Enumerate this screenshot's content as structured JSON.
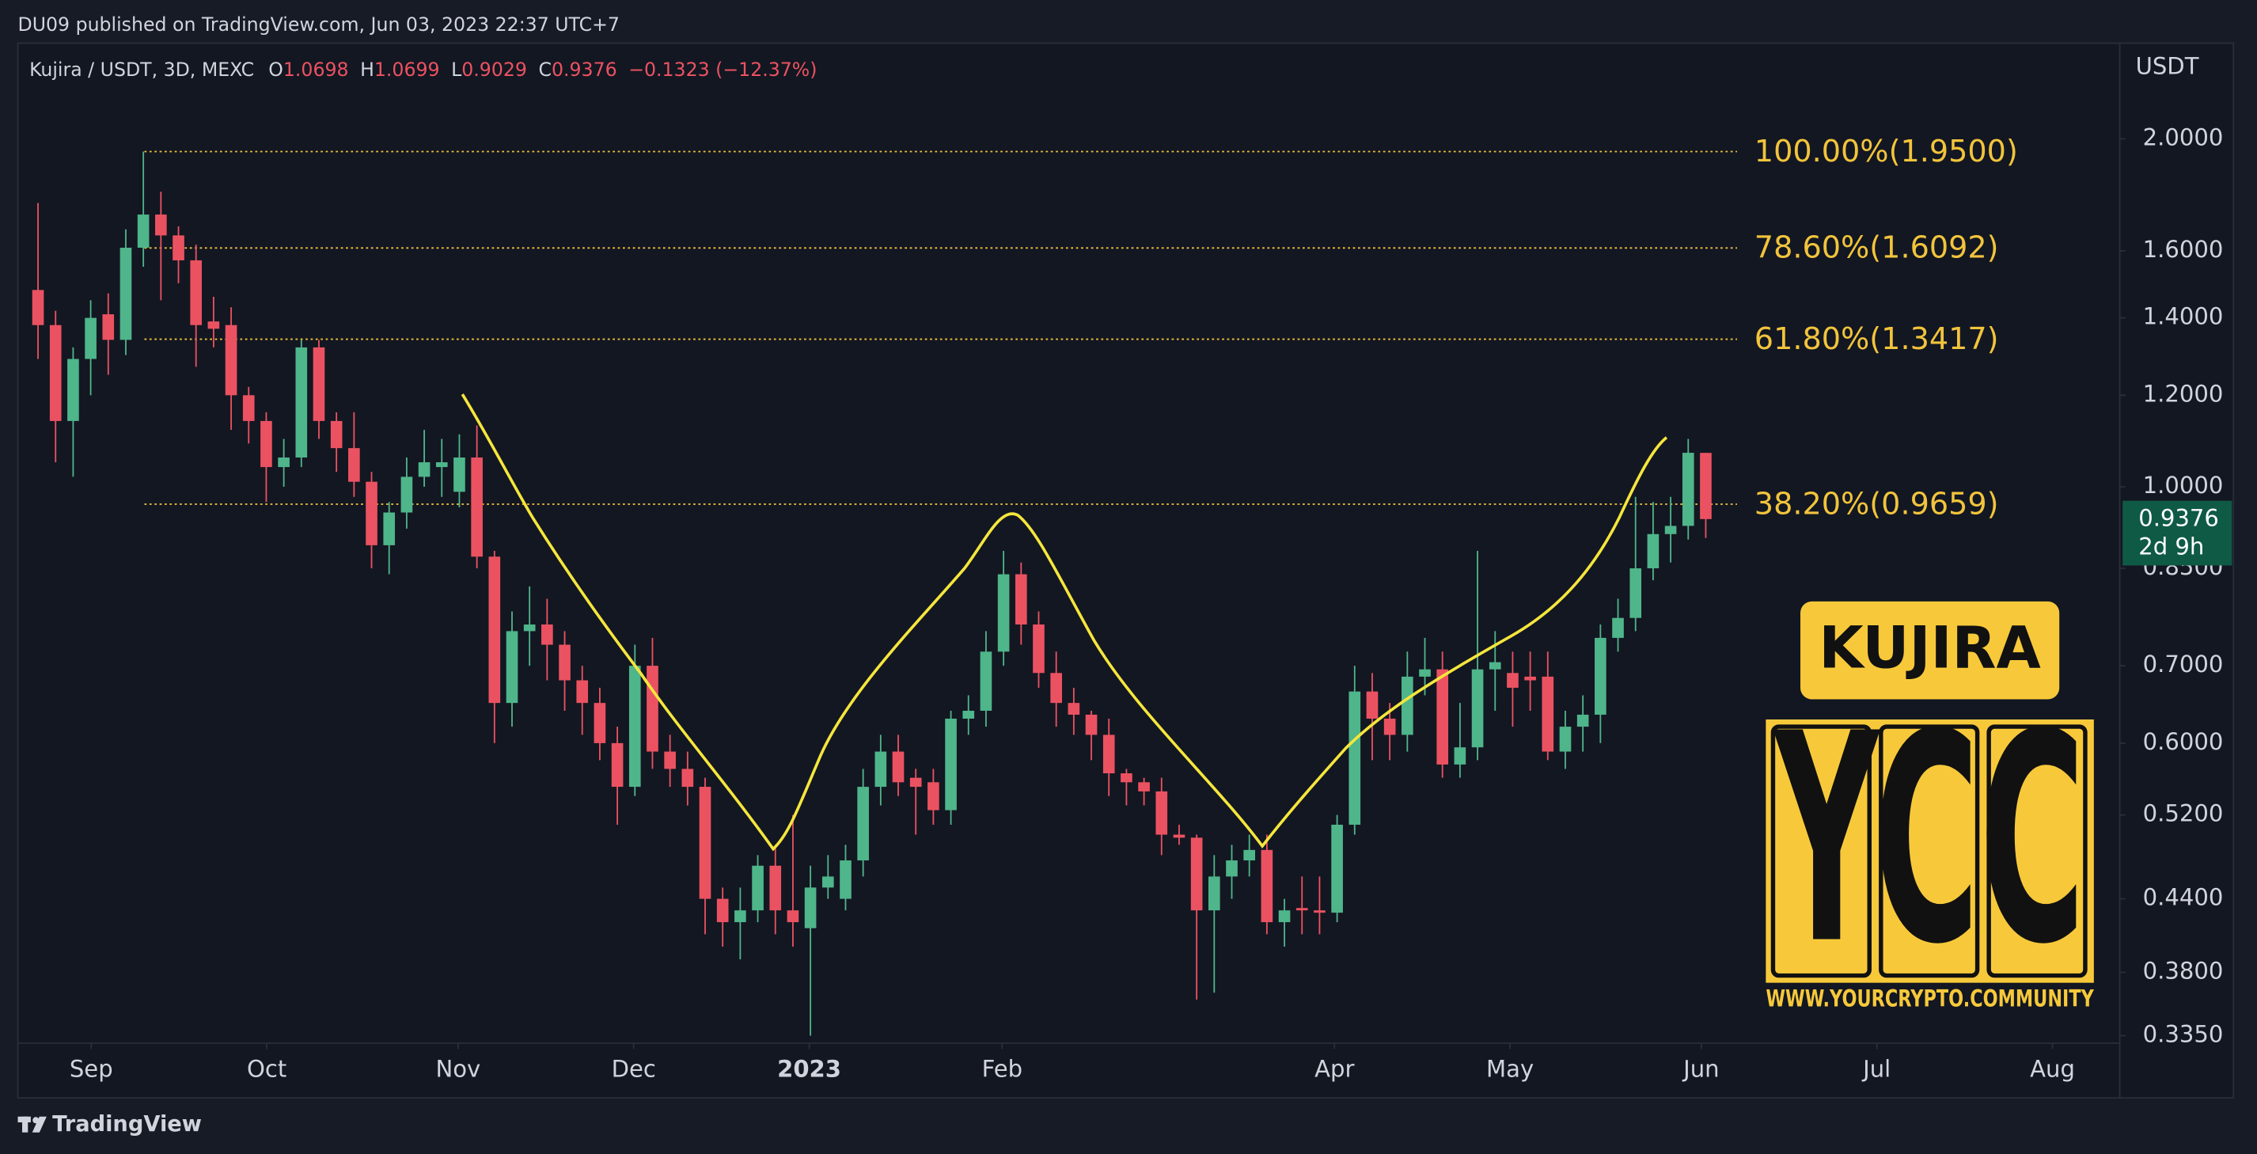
{
  "header": "DU09 published on TradingView.com, Jun 03, 2023 22:37 UTC+7",
  "footer": "TradingView",
  "chart_data": {
    "type": "candlestick",
    "symbol": "Kujira / USDT, 3D, MEXC",
    "legend_labels": [
      "O",
      "H",
      "L",
      "C"
    ],
    "change": "−0.1323 (−12.37%)",
    "axis_unit": "USDT",
    "countdown": "2d 9h",
    "log_scale": true,
    "up_color": "#4fb58a",
    "down_color": "#eb5261",
    "fib_color": "#f2c43c",
    "ylim": [
      0.33,
      2.42
    ],
    "yticks": [
      {
        "value": 2,
        "label": "2.0000"
      },
      {
        "value": 1.6,
        "label": "1.6000"
      },
      {
        "value": 1.4,
        "label": "1.4000"
      },
      {
        "value": 1.2,
        "label": "1.2000"
      },
      {
        "value": 1,
        "label": "1.0000"
      },
      {
        "value": 0.85,
        "label": "0.8500"
      },
      {
        "value": 0.7,
        "label": "0.7000"
      },
      {
        "value": 0.6,
        "label": "0.6000"
      },
      {
        "value": 0.52,
        "label": "0.5200"
      },
      {
        "value": 0.44,
        "label": "0.4400"
      },
      {
        "value": 0.38,
        "label": "0.3800"
      },
      {
        "value": 0.335,
        "label": "0.3350"
      }
    ],
    "xlim": [
      -1.15,
      118.5
    ],
    "xticks": [
      {
        "value": 3.03,
        "label": "Sep"
      },
      {
        "value": 13.03,
        "label": "Oct"
      },
      {
        "value": 23.93,
        "label": "Nov"
      },
      {
        "value": 33.93,
        "label": "Dec"
      },
      {
        "value": 43.93,
        "label": "2023"
      },
      {
        "value": 54.92,
        "label": "Feb"
      },
      {
        "value": 73.85,
        "label": "Apr"
      },
      {
        "value": 83.85,
        "label": "May"
      },
      {
        "value": 94.75,
        "label": "Jun"
      },
      {
        "value": 104.75,
        "label": "Jul"
      },
      {
        "value": 114.75,
        "label": "Aug"
      }
    ],
    "fib_levels": [
      {
        "value": 1.95,
        "label": "100.00%(1.9500)"
      },
      {
        "value": 1.6092,
        "label": "78.60%(1.6092)"
      },
      {
        "value": 1.3417,
        "label": "61.80%(1.3417)"
      },
      {
        "value": 0.9659,
        "label": "38.20%(0.9659)"
      }
    ],
    "watermark": {
      "badge": "KUJIRA",
      "logo": "YCC",
      "site": "WWW.YOURCRYPTO.COMMUNITY"
    },
    "candles": [
      {
        "open": 1.48,
        "high": 1.76,
        "low": 1.29,
        "close": 1.38
      },
      {
        "open": 1.38,
        "high": 1.42,
        "low": 1.05,
        "close": 1.14
      },
      {
        "open": 1.14,
        "high": 1.32,
        "low": 1.02,
        "close": 1.29
      },
      {
        "open": 1.29,
        "high": 1.45,
        "low": 1.2,
        "close": 1.4
      },
      {
        "open": 1.41,
        "high": 1.47,
        "low": 1.25,
        "close": 1.34
      },
      {
        "open": 1.34,
        "high": 1.67,
        "low": 1.3,
        "close": 1.61
      },
      {
        "open": 1.61,
        "high": 1.95,
        "low": 1.55,
        "close": 1.72
      },
      {
        "open": 1.72,
        "high": 1.8,
        "low": 1.45,
        "close": 1.65
      },
      {
        "open": 1.65,
        "high": 1.68,
        "low": 1.5,
        "close": 1.57
      },
      {
        "open": 1.57,
        "high": 1.62,
        "low": 1.27,
        "close": 1.38
      },
      {
        "open": 1.39,
        "high": 1.46,
        "low": 1.32,
        "close": 1.37
      },
      {
        "open": 1.38,
        "high": 1.43,
        "low": 1.12,
        "close": 1.2
      },
      {
        "open": 1.2,
        "high": 1.22,
        "low": 1.09,
        "close": 1.14
      },
      {
        "open": 1.14,
        "high": 1.16,
        "low": 0.97,
        "close": 1.04
      },
      {
        "open": 1.04,
        "high": 1.1,
        "low": 1.0,
        "close": 1.06
      },
      {
        "open": 1.06,
        "high": 1.34,
        "low": 1.04,
        "close": 1.32
      },
      {
        "open": 1.32,
        "high": 1.34,
        "low": 1.1,
        "close": 1.14
      },
      {
        "open": 1.14,
        "high": 1.16,
        "low": 1.03,
        "close": 1.08
      },
      {
        "open": 1.08,
        "high": 1.16,
        "low": 0.98,
        "close": 1.01
      },
      {
        "open": 1.01,
        "high": 1.03,
        "low": 0.85,
        "close": 0.89
      },
      {
        "open": 0.89,
        "high": 0.97,
        "low": 0.84,
        "close": 0.95
      },
      {
        "open": 0.95,
        "high": 1.06,
        "low": 0.92,
        "close": 1.02
      },
      {
        "open": 1.02,
        "high": 1.12,
        "low": 1.0,
        "close": 1.05
      },
      {
        "open": 1.04,
        "high": 1.1,
        "low": 0.98,
        "close": 1.05
      },
      {
        "open": 0.99,
        "high": 1.11,
        "low": 0.96,
        "close": 1.06
      },
      {
        "open": 1.06,
        "high": 1.13,
        "low": 0.85,
        "close": 0.87
      },
      {
        "open": 0.87,
        "high": 0.88,
        "low": 0.6,
        "close": 0.65
      },
      {
        "open": 0.65,
        "high": 0.78,
        "low": 0.62,
        "close": 0.75
      },
      {
        "open": 0.75,
        "high": 0.82,
        "low": 0.7,
        "close": 0.76
      },
      {
        "open": 0.76,
        "high": 0.8,
        "low": 0.68,
        "close": 0.73
      },
      {
        "open": 0.73,
        "high": 0.75,
        "low": 0.64,
        "close": 0.68
      },
      {
        "open": 0.68,
        "high": 0.7,
        "low": 0.61,
        "close": 0.65
      },
      {
        "open": 0.65,
        "high": 0.67,
        "low": 0.58,
        "close": 0.6
      },
      {
        "open": 0.6,
        "high": 0.62,
        "low": 0.51,
        "close": 0.55
      },
      {
        "open": 0.55,
        "high": 0.73,
        "low": 0.54,
        "close": 0.7
      },
      {
        "open": 0.7,
        "high": 0.74,
        "low": 0.57,
        "close": 0.59
      },
      {
        "open": 0.59,
        "high": 0.61,
        "low": 0.55,
        "close": 0.57
      },
      {
        "open": 0.57,
        "high": 0.59,
        "low": 0.53,
        "close": 0.55
      },
      {
        "open": 0.55,
        "high": 0.56,
        "low": 0.41,
        "close": 0.44
      },
      {
        "open": 0.44,
        "high": 0.45,
        "low": 0.4,
        "close": 0.42
      },
      {
        "open": 0.42,
        "high": 0.45,
        "low": 0.39,
        "close": 0.43
      },
      {
        "open": 0.43,
        "high": 0.48,
        "low": 0.42,
        "close": 0.47
      },
      {
        "open": 0.47,
        "high": 0.49,
        "low": 0.41,
        "close": 0.43
      },
      {
        "open": 0.43,
        "high": 0.52,
        "low": 0.4,
        "close": 0.42
      },
      {
        "open": 0.415,
        "high": 0.47,
        "low": 0.335,
        "close": 0.45
      },
      {
        "open": 0.45,
        "high": 0.48,
        "low": 0.44,
        "close": 0.46
      },
      {
        "open": 0.44,
        "high": 0.49,
        "low": 0.43,
        "close": 0.475
      },
      {
        "open": 0.475,
        "high": 0.57,
        "low": 0.46,
        "close": 0.55
      },
      {
        "open": 0.55,
        "high": 0.61,
        "low": 0.53,
        "close": 0.59
      },
      {
        "open": 0.59,
        "high": 0.61,
        "low": 0.54,
        "close": 0.555
      },
      {
        "open": 0.56,
        "high": 0.57,
        "low": 0.5,
        "close": 0.55
      },
      {
        "open": 0.555,
        "high": 0.57,
        "low": 0.51,
        "close": 0.525
      },
      {
        "open": 0.525,
        "high": 0.64,
        "low": 0.51,
        "close": 0.63
      },
      {
        "open": 0.63,
        "high": 0.66,
        "low": 0.61,
        "close": 0.64
      },
      {
        "open": 0.64,
        "high": 0.75,
        "low": 0.62,
        "close": 0.72
      },
      {
        "open": 0.72,
        "high": 0.88,
        "low": 0.7,
        "close": 0.84
      },
      {
        "open": 0.84,
        "high": 0.86,
        "low": 0.73,
        "close": 0.76
      },
      {
        "open": 0.76,
        "high": 0.78,
        "low": 0.67,
        "close": 0.69
      },
      {
        "open": 0.69,
        "high": 0.72,
        "low": 0.62,
        "close": 0.65
      },
      {
        "open": 0.65,
        "high": 0.67,
        "low": 0.61,
        "close": 0.635
      },
      {
        "open": 0.635,
        "high": 0.64,
        "low": 0.58,
        "close": 0.61
      },
      {
        "open": 0.61,
        "high": 0.63,
        "low": 0.54,
        "close": 0.565
      },
      {
        "open": 0.565,
        "high": 0.57,
        "low": 0.53,
        "close": 0.555
      },
      {
        "open": 0.555,
        "high": 0.56,
        "low": 0.53,
        "close": 0.545
      },
      {
        "open": 0.545,
        "high": 0.56,
        "low": 0.48,
        "close": 0.5
      },
      {
        "open": 0.5,
        "high": 0.51,
        "low": 0.49,
        "close": 0.497
      },
      {
        "open": 0.497,
        "high": 0.5,
        "low": 0.36,
        "close": 0.43
      },
      {
        "open": 0.43,
        "high": 0.48,
        "low": 0.365,
        "close": 0.46
      },
      {
        "open": 0.46,
        "high": 0.49,
        "low": 0.44,
        "close": 0.475
      },
      {
        "open": 0.475,
        "high": 0.5,
        "low": 0.46,
        "close": 0.485
      },
      {
        "open": 0.485,
        "high": 0.5,
        "low": 0.41,
        "close": 0.42
      },
      {
        "open": 0.42,
        "high": 0.44,
        "low": 0.4,
        "close": 0.43
      },
      {
        "open": 0.432,
        "high": 0.46,
        "low": 0.41,
        "close": 0.43
      },
      {
        "open": 0.43,
        "high": 0.46,
        "low": 0.41,
        "close": 0.428
      },
      {
        "open": 0.428,
        "high": 0.52,
        "low": 0.42,
        "close": 0.51
      },
      {
        "open": 0.51,
        "high": 0.7,
        "low": 0.5,
        "close": 0.665
      },
      {
        "open": 0.665,
        "high": 0.69,
        "low": 0.58,
        "close": 0.63
      },
      {
        "open": 0.63,
        "high": 0.65,
        "low": 0.58,
        "close": 0.61
      },
      {
        "open": 0.61,
        "high": 0.72,
        "low": 0.59,
        "close": 0.685
      },
      {
        "open": 0.685,
        "high": 0.74,
        "low": 0.66,
        "close": 0.695
      },
      {
        "open": 0.695,
        "high": 0.72,
        "low": 0.56,
        "close": 0.575
      },
      {
        "open": 0.575,
        "high": 0.65,
        "low": 0.56,
        "close": 0.595
      },
      {
        "open": 0.595,
        "high": 0.88,
        "low": 0.58,
        "close": 0.695
      },
      {
        "open": 0.695,
        "high": 0.75,
        "low": 0.64,
        "close": 0.705
      },
      {
        "open": 0.69,
        "high": 0.72,
        "low": 0.62,
        "close": 0.67
      },
      {
        "open": 0.685,
        "high": 0.72,
        "low": 0.64,
        "close": 0.68
      },
      {
        "open": 0.685,
        "high": 0.72,
        "low": 0.58,
        "close": 0.59
      },
      {
        "open": 0.59,
        "high": 0.64,
        "low": 0.57,
        "close": 0.62
      },
      {
        "open": 0.62,
        "high": 0.66,
        "low": 0.59,
        "close": 0.635
      },
      {
        "open": 0.635,
        "high": 0.76,
        "low": 0.6,
        "close": 0.74
      },
      {
        "open": 0.74,
        "high": 0.8,
        "low": 0.72,
        "close": 0.77
      },
      {
        "open": 0.77,
        "high": 0.98,
        "low": 0.75,
        "close": 0.85
      },
      {
        "open": 0.85,
        "high": 0.97,
        "low": 0.83,
        "close": 0.91
      },
      {
        "open": 0.91,
        "high": 0.98,
        "low": 0.86,
        "close": 0.925
      },
      {
        "open": 0.925,
        "high": 1.1,
        "low": 0.9,
        "close": 1.07
      },
      {
        "open": 1.0698,
        "high": 1.0699,
        "low": 0.9029,
        "close": 0.9376
      }
    ]
  }
}
